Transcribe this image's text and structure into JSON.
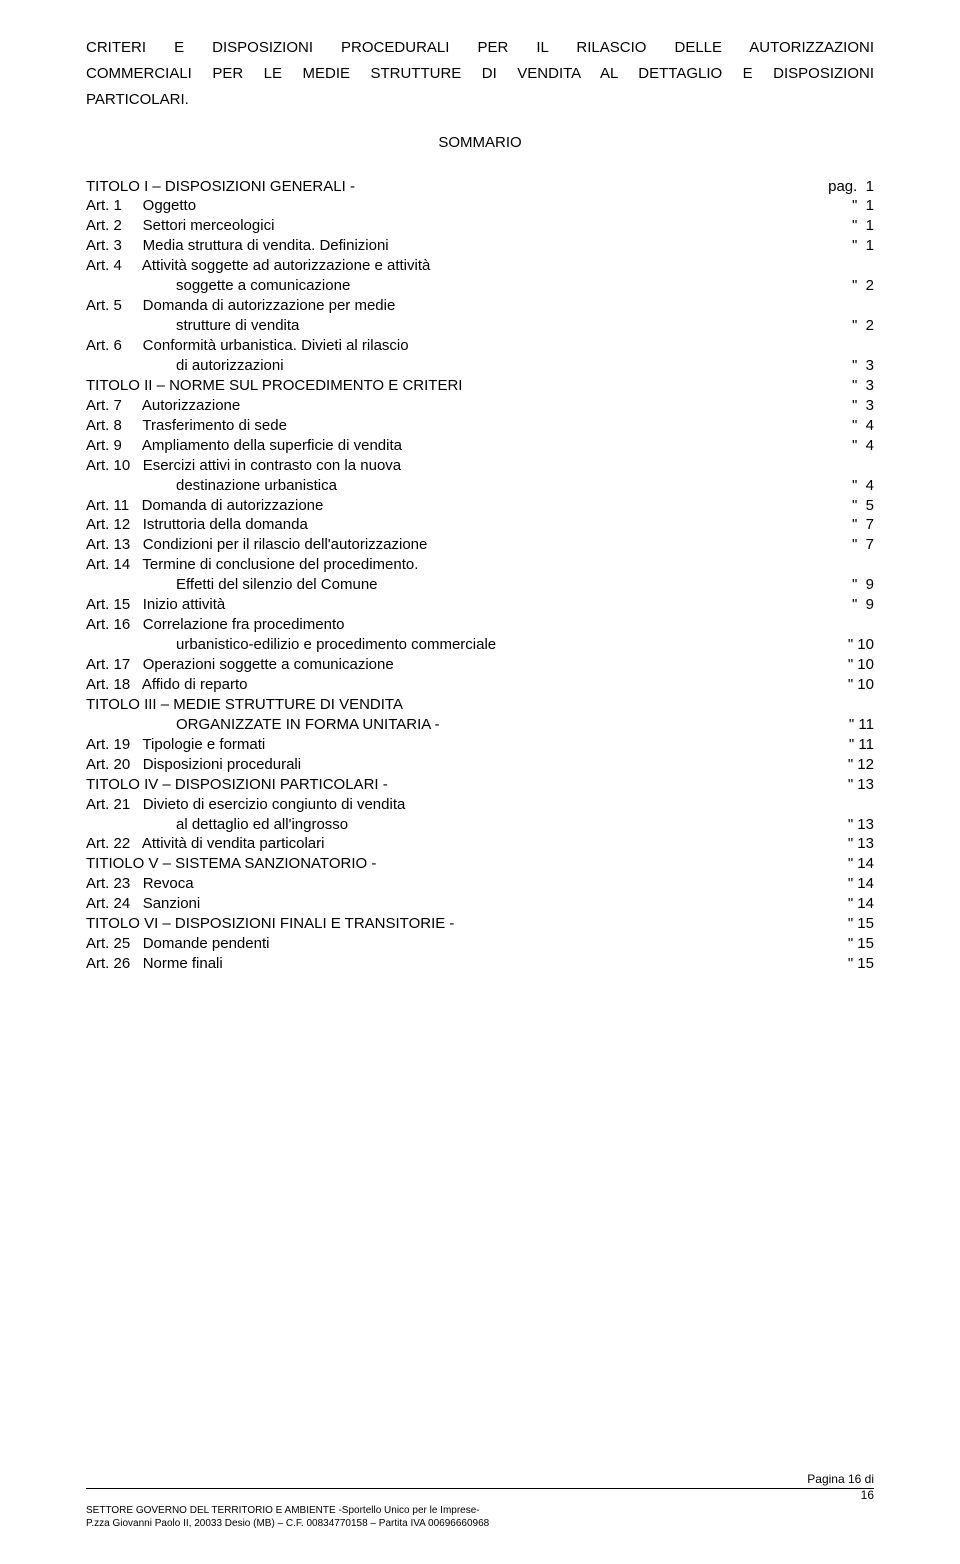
{
  "title": {
    "line1": "CRITERI E DISPOSIZIONI PROCEDURALI PER IL RILASCIO DELLE AUTORIZZAZIONI",
    "line2": "COMMERCIALI PER LE MEDIE STRUTTURE DI VENDITA AL DETTAGLIO E DISPOSIZIONI",
    "line3": "PARTICOLARI."
  },
  "sommario": "SOMMARIO",
  "toc": [
    {
      "l": "TITOLO I – DISPOSIZIONI GENERALI -",
      "r": "pag.  1"
    },
    {
      "l": "Art. 1     Oggetto",
      "r": "\"  1"
    },
    {
      "l": "Art. 2     Settori merceologici",
      "r": "\"  1"
    },
    {
      "l": "Art. 3     Media struttura di vendita. Definizioni",
      "r": "\"  1"
    },
    {
      "l": "Art. 4     Attività soggette ad autorizzazione e attività",
      "r": ""
    },
    {
      "l": "soggette a comunicazione",
      "r": "\"  2",
      "indent": true
    },
    {
      "l": "Art. 5     Domanda di autorizzazione per medie",
      "r": ""
    },
    {
      "l": "strutture di vendita",
      "r": "\"  2",
      "indent": true
    },
    {
      "l": "Art. 6     Conformità urbanistica. Divieti al rilascio",
      "r": ""
    },
    {
      "l": "di autorizzazioni",
      "r": "\"  3",
      "indent": true
    },
    {
      "l": "TITOLO II – NORME SUL PROCEDIMENTO E CRITERI",
      "r": "\"  3"
    },
    {
      "l": "Art. 7     Autorizzazione",
      "r": "\"  3"
    },
    {
      "l": "Art. 8     Trasferimento di sede",
      "r": "\"  4"
    },
    {
      "l": "Art. 9     Ampliamento della superficie di vendita",
      "r": "\"  4"
    },
    {
      "l": "Art. 10   Esercizi attivi in contrasto con la nuova",
      "r": ""
    },
    {
      "l": "destinazione urbanistica",
      "r": "\"  4",
      "indent": true
    },
    {
      "l": "Art. 11   Domanda di autorizzazione",
      "r": "\"  5"
    },
    {
      "l": "Art. 12   Istruttoria della domanda",
      "r": "\"  7"
    },
    {
      "l": "Art. 13   Condizioni per il rilascio dell'autorizzazione",
      "r": "\"  7"
    },
    {
      "l": "Art. 14   Termine di conclusione del procedimento.",
      "r": ""
    },
    {
      "l": "Effetti del silenzio del Comune",
      "r": "\"  9",
      "indent": true
    },
    {
      "l": "Art. 15   Inizio attività",
      "r": "\"  9"
    },
    {
      "l": "Art. 16   Correlazione fra procedimento",
      "r": ""
    },
    {
      "l": "urbanistico-edilizio e procedimento commerciale",
      "r": "\" 10",
      "indent": true
    },
    {
      "l": "Art. 17   Operazioni soggette a comunicazione",
      "r": "\" 10"
    },
    {
      "l": "Art. 18   Affido di reparto",
      "r": "\" 10"
    },
    {
      "l": "TITOLO III – MEDIE STRUTTURE DI VENDITA",
      "r": ""
    },
    {
      "l": "ORGANIZZATE IN FORMA UNITARIA -",
      "r": "\" 11",
      "indent": true
    },
    {
      "l": "Art. 19   Tipologie e formati",
      "r": "\" 11"
    },
    {
      "l": "Art. 20   Disposizioni procedurali",
      "r": "\" 12"
    },
    {
      "l": "TITOLO IV – DISPOSIZIONI PARTICOLARI -",
      "r": "\" 13"
    },
    {
      "l": "Art. 21   Divieto di esercizio congiunto di vendita",
      "r": ""
    },
    {
      "l": "al dettaglio ed all'ingrosso",
      "r": "\" 13",
      "indent": true
    },
    {
      "l": "Art. 22   Attività di vendita particolari",
      "r": "\" 13"
    },
    {
      "l": "TITIOLO V – SISTEMA SANZIONATORIO -",
      "r": "\" 14"
    },
    {
      "l": "Art. 23   Revoca",
      "r": "\" 14"
    },
    {
      "l": "Art. 24   Sanzioni",
      "r": "\" 14"
    },
    {
      "l": "TITOLO VI – DISPOSIZIONI FINALI E TRANSITORIE -",
      "r": "\" 15"
    },
    {
      "l": "Art. 25   Domande pendenti",
      "r": "\" 15"
    },
    {
      "l": "Art. 26   Norme finali",
      "r": "\" 15"
    }
  ],
  "footer": {
    "pageLabel": "Pagina 16 di",
    "pageTotal": "16",
    "dept": "SETTORE GOVERNO DEL TERRITORIO E AMBIENTE -Sportello Unico per le Imprese-",
    "addr": "P.zza Giovanni Paolo II, 20033 Desio (MB) – C.F. 00834770158 – Partita IVA 00696660968"
  }
}
